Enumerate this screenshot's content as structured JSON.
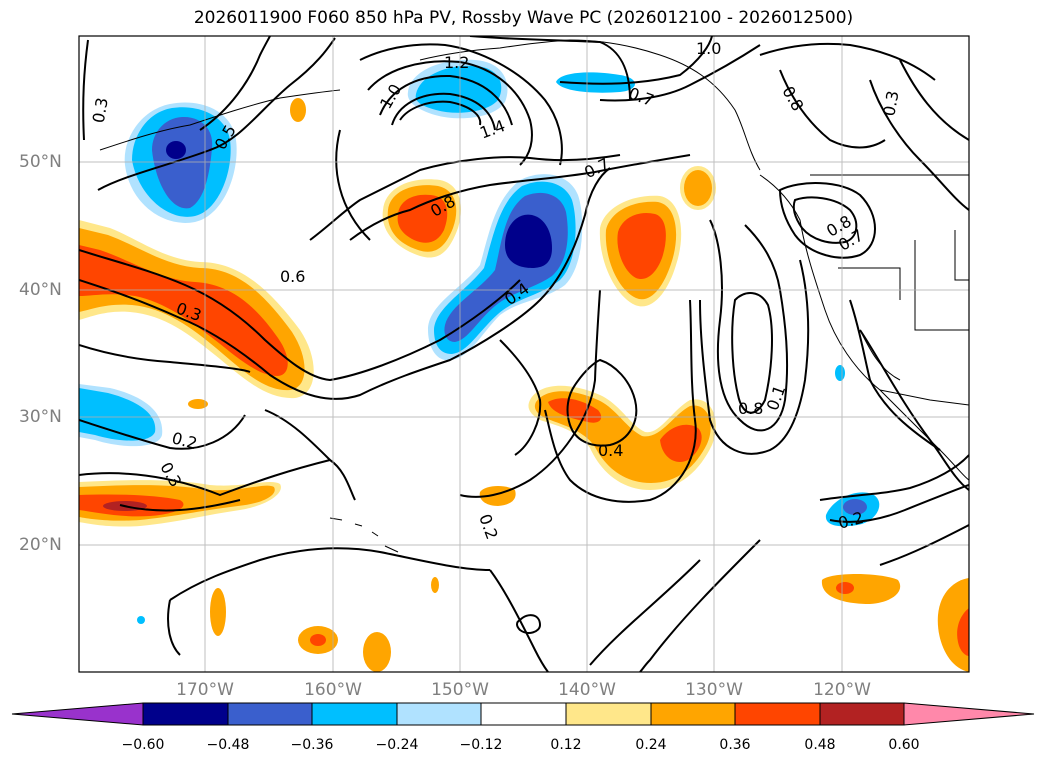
{
  "title": "2026011900 F060 850 hPa PV, Rossby Wave PC (2026012100 - 2026012500)",
  "latitude_labels": [
    "50°N",
    "40°N",
    "30°N",
    "20°N"
  ],
  "longitude_labels": [
    "170°W",
    "160°W",
    "150°W",
    "140°W",
    "130°W",
    "120°W"
  ],
  "contour_labels": [
    "0.3",
    "0.5",
    "1.0",
    "1.2",
    "1.4",
    "0.7",
    "1.0",
    "0.8",
    "0.3",
    "0.7",
    "0.8",
    "0.7",
    "0.8",
    "0.6",
    "0.3",
    "0.4",
    "0.2",
    "0.3",
    "0.2",
    "0.4",
    "0.8",
    "0.1",
    "0.2"
  ],
  "colorbar": {
    "ticks": [
      "−0.60",
      "−0.48",
      "−0.36",
      "−0.24",
      "−0.12",
      "0.12",
      "0.24",
      "0.36",
      "0.48",
      "0.60"
    ],
    "colors": [
      "#9932cc",
      "#00008b",
      "#3a5fcd",
      "#00bfff",
      "#b0e2ff",
      "#ffffff",
      "#ffe78a",
      "#ffa500",
      "#ff4500",
      "#b22222",
      "#ff88aa"
    ]
  },
  "shading_colors": {
    "neg_strong": "#00008b",
    "neg_mid": "#3a5fcd",
    "neg_weak": "#00bfff",
    "neg_faint": "#b0e2ff",
    "pos_faint": "#ffe78a",
    "pos_weak": "#ffa500",
    "pos_mid": "#ff4500",
    "pos_strong": "#b22222"
  }
}
